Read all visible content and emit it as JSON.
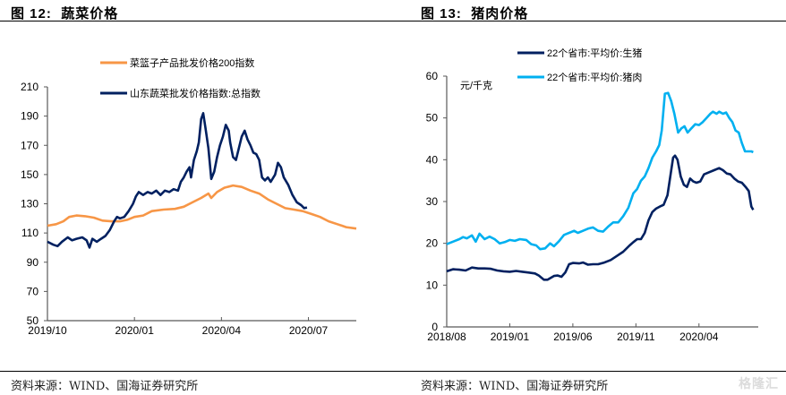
{
  "watermark": "格隆汇",
  "panels": [
    {
      "figure_label": "图 12:",
      "figure_title": "蔬菜价格",
      "source": "资料来源：WIND、国海证券研究所"
    },
    {
      "figure_label": "图 13:",
      "figure_title": "猪肉价格",
      "source": "资料来源：WIND、国海证券研究所"
    }
  ],
  "chart_data": [
    {
      "type": "line",
      "title": "蔬菜价格",
      "xlabel": "",
      "ylabel": "",
      "ylim": [
        50,
        210
      ],
      "yticks": [
        50,
        70,
        90,
        110,
        130,
        150,
        170,
        190,
        210
      ],
      "x_unit": "months since 2019/10",
      "xlim": [
        0,
        10.65
      ],
      "xticks": [
        {
          "label": "2019/10",
          "x": 0
        },
        {
          "label": "2020/01",
          "x": 3
        },
        {
          "label": "2020/04",
          "x": 6
        },
        {
          "label": "2020/07",
          "x": 9
        }
      ],
      "legend_position": "top-center",
      "grid": false,
      "series": [
        {
          "name": "菜篮子产品批发价格200指数",
          "color": "#F79646",
          "points": [
            [
              0,
              115
            ],
            [
              0.3,
              116
            ],
            [
              0.55,
              118
            ],
            [
              0.75,
              121
            ],
            [
              1.0,
              122
            ],
            [
              1.3,
              121.5
            ],
            [
              1.6,
              120.5
            ],
            [
              1.9,
              118.5
            ],
            [
              2.2,
              118
            ],
            [
              2.5,
              118
            ],
            [
              2.75,
              119
            ],
            [
              3.0,
              121
            ],
            [
              3.3,
              122
            ],
            [
              3.6,
              125
            ],
            [
              4.0,
              126
            ],
            [
              4.4,
              126.5
            ],
            [
              4.7,
              128
            ],
            [
              5.0,
              131
            ],
            [
              5.3,
              134
            ],
            [
              5.55,
              137
            ],
            [
              5.65,
              134
            ],
            [
              5.85,
              138
            ],
            [
              6.1,
              141
            ],
            [
              6.4,
              142.5
            ],
            [
              6.7,
              141.5
            ],
            [
              7.0,
              139
            ],
            [
              7.3,
              137
            ],
            [
              7.6,
              133
            ],
            [
              7.9,
              130
            ],
            [
              8.2,
              127
            ],
            [
              8.5,
              126
            ],
            [
              8.8,
              125
            ],
            [
              9.1,
              123
            ],
            [
              9.4,
              121
            ],
            [
              9.7,
              118
            ],
            [
              10.0,
              116
            ],
            [
              10.3,
              114
            ],
            [
              10.65,
              113
            ]
          ]
        },
        {
          "name": "山东蔬菜批发价格指数:总指数",
          "color": "#002060",
          "points": [
            [
              0,
              104
            ],
            [
              0.2,
              102
            ],
            [
              0.35,
              101
            ],
            [
              0.5,
              104
            ],
            [
              0.7,
              107
            ],
            [
              0.85,
              105
            ],
            [
              1.0,
              106
            ],
            [
              1.2,
              107
            ],
            [
              1.35,
              105
            ],
            [
              1.45,
              100
            ],
            [
              1.55,
              106
            ],
            [
              1.7,
              104
            ],
            [
              1.85,
              106
            ],
            [
              2.0,
              108
            ],
            [
              2.15,
              112
            ],
            [
              2.3,
              118
            ],
            [
              2.4,
              121
            ],
            [
              2.5,
              120
            ],
            [
              2.65,
              121
            ],
            [
              2.8,
              125
            ],
            [
              2.95,
              130
            ],
            [
              3.05,
              135
            ],
            [
              3.15,
              138
            ],
            [
              3.3,
              136
            ],
            [
              3.45,
              138
            ],
            [
              3.6,
              137
            ],
            [
              3.75,
              139
            ],
            [
              3.9,
              136
            ],
            [
              4.05,
              139
            ],
            [
              4.2,
              138
            ],
            [
              4.35,
              140
            ],
            [
              4.5,
              139
            ],
            [
              4.6,
              145
            ],
            [
              4.7,
              148
            ],
            [
              4.8,
              152
            ],
            [
              4.9,
              155
            ],
            [
              4.95,
              148
            ],
            [
              5.05,
              160
            ],
            [
              5.15,
              166
            ],
            [
              5.22,
              172
            ],
            [
              5.3,
              188
            ],
            [
              5.37,
              192
            ],
            [
              5.45,
              182
            ],
            [
              5.55,
              168
            ],
            [
              5.65,
              147
            ],
            [
              5.75,
              152
            ],
            [
              5.85,
              162
            ],
            [
              5.95,
              170
            ],
            [
              6.05,
              176
            ],
            [
              6.15,
              184
            ],
            [
              6.25,
              180
            ],
            [
              6.3,
              172
            ],
            [
              6.4,
              162
            ],
            [
              6.5,
              160
            ],
            [
              6.6,
              168
            ],
            [
              6.7,
              176
            ],
            [
              6.8,
              180
            ],
            [
              6.9,
              174
            ],
            [
              7.0,
              170
            ],
            [
              7.1,
              165
            ],
            [
              7.2,
              164
            ],
            [
              7.3,
              160
            ],
            [
              7.4,
              148
            ],
            [
              7.5,
              146
            ],
            [
              7.6,
              148
            ],
            [
              7.7,
              145
            ],
            [
              7.85,
              150
            ],
            [
              7.95,
              158
            ],
            [
              8.05,
              155
            ],
            [
              8.15,
              148
            ],
            [
              8.3,
              143
            ],
            [
              8.45,
              136
            ],
            [
              8.6,
              131
            ],
            [
              8.75,
              129
            ],
            [
              8.85,
              127
            ],
            [
              8.95,
              127.5
            ]
          ]
        }
      ]
    },
    {
      "type": "line",
      "title": "猪肉价格",
      "xlabel": "",
      "ylabel": "元/千克",
      "ylim": [
        0,
        60
      ],
      "yticks": [
        0,
        10,
        20,
        30,
        40,
        50,
        60
      ],
      "x_unit": "months since 2018/08",
      "xlim": [
        0,
        24.7
      ],
      "xticks": [
        {
          "label": "2018/08",
          "x": 0
        },
        {
          "label": "2019/01",
          "x": 5
        },
        {
          "label": "2019/06",
          "x": 10
        },
        {
          "label": "2019/11",
          "x": 15
        },
        {
          "label": "2020/04",
          "x": 20
        }
      ],
      "legend_position": "top-center",
      "grid": false,
      "series": [
        {
          "name": "22个省市:平均价:生猪",
          "color": "#002060",
          "points": [
            [
              0,
              13.3
            ],
            [
              0.5,
              13.8
            ],
            [
              1.0,
              13.7
            ],
            [
              1.5,
              13.5
            ],
            [
              2.0,
              14.2
            ],
            [
              2.5,
              14.0
            ],
            [
              3.0,
              14.0
            ],
            [
              3.5,
              13.9
            ],
            [
              4.0,
              13.5
            ],
            [
              4.5,
              13.3
            ],
            [
              5.0,
              13.2
            ],
            [
              5.5,
              13.4
            ],
            [
              6.0,
              13.2
            ],
            [
              6.5,
              13.0
            ],
            [
              7.0,
              12.8
            ],
            [
              7.3,
              12.3
            ],
            [
              7.7,
              11.3
            ],
            [
              8.0,
              11.3
            ],
            [
              8.5,
              12.2
            ],
            [
              8.8,
              12.3
            ],
            [
              9.1,
              12.0
            ],
            [
              9.4,
              13.0
            ],
            [
              9.7,
              15.0
            ],
            [
              10.0,
              15.3
            ],
            [
              10.5,
              15.2
            ],
            [
              10.8,
              15.4
            ],
            [
              11.2,
              14.9
            ],
            [
              11.6,
              15.0
            ],
            [
              12.0,
              15.0
            ],
            [
              12.5,
              15.4
            ],
            [
              13.0,
              16.0
            ],
            [
              13.5,
              17.0
            ],
            [
              14.0,
              18.0
            ],
            [
              14.5,
              19.5
            ],
            [
              14.8,
              20.3
            ],
            [
              15.1,
              21.0
            ],
            [
              15.4,
              21.0
            ],
            [
              15.7,
              22.5
            ],
            [
              16.0,
              25.5
            ],
            [
              16.3,
              27.5
            ],
            [
              16.6,
              28.3
            ],
            [
              16.9,
              28.8
            ],
            [
              17.2,
              29.2
            ],
            [
              17.5,
              31.5
            ],
            [
              17.75,
              36.5
            ],
            [
              17.95,
              40.5
            ],
            [
              18.1,
              41.0
            ],
            [
              18.3,
              40.0
            ],
            [
              18.55,
              36.0
            ],
            [
              18.8,
              34.0
            ],
            [
              19.05,
              33.5
            ],
            [
              19.3,
              35.5
            ],
            [
              19.55,
              34.8
            ],
            [
              19.8,
              34.5
            ],
            [
              20.1,
              34.8
            ],
            [
              20.4,
              36.5
            ],
            [
              20.8,
              37.0
            ],
            [
              21.2,
              37.5
            ],
            [
              21.6,
              38.0
            ],
            [
              21.9,
              37.5
            ],
            [
              22.2,
              36.7
            ],
            [
              22.5,
              36.5
            ],
            [
              22.8,
              35.5
            ],
            [
              23.1,
              34.8
            ],
            [
              23.4,
              34.5
            ],
            [
              23.7,
              33.5
            ],
            [
              23.95,
              32.5
            ],
            [
              24.15,
              28.8
            ],
            [
              24.3,
              28.0
            ]
          ]
        },
        {
          "name": "22个省市:平均价:猪肉",
          "color": "#00B0F0",
          "points": [
            [
              0,
              19.8
            ],
            [
              0.5,
              20.4
            ],
            [
              1.0,
              21.0
            ],
            [
              1.3,
              21.5
            ],
            [
              1.6,
              21.2
            ],
            [
              2.0,
              21.9
            ],
            [
              2.3,
              20.4
            ],
            [
              2.6,
              22.3
            ],
            [
              3.0,
              21.0
            ],
            [
              3.4,
              21.6
            ],
            [
              3.8,
              21.0
            ],
            [
              4.2,
              20.0
            ],
            [
              4.6,
              20.3
            ],
            [
              5.0,
              20.8
            ],
            [
              5.4,
              20.6
            ],
            [
              5.8,
              21.0
            ],
            [
              6.3,
              20.8
            ],
            [
              6.7,
              19.8
            ],
            [
              7.1,
              19.5
            ],
            [
              7.4,
              18.6
            ],
            [
              7.8,
              18.8
            ],
            [
              8.2,
              20.0
            ],
            [
              8.5,
              19.3
            ],
            [
              8.9,
              20.5
            ],
            [
              9.3,
              22.0
            ],
            [
              9.7,
              22.5
            ],
            [
              10.1,
              23.0
            ],
            [
              10.4,
              22.5
            ],
            [
              10.8,
              23.0
            ],
            [
              11.2,
              23.5
            ],
            [
              11.6,
              23.8
            ],
            [
              12.0,
              23.0
            ],
            [
              12.4,
              22.8
            ],
            [
              12.8,
              24.0
            ],
            [
              13.2,
              25.0
            ],
            [
              13.6,
              25.0
            ],
            [
              14.0,
              26.5
            ],
            [
              14.4,
              28.5
            ],
            [
              14.8,
              32.0
            ],
            [
              15.1,
              33.0
            ],
            [
              15.4,
              35.0
            ],
            [
              15.7,
              36.0
            ],
            [
              16.0,
              38.0
            ],
            [
              16.3,
              40.5
            ],
            [
              16.6,
              42.0
            ],
            [
              16.85,
              43.5
            ],
            [
              17.05,
              47.0
            ],
            [
              17.3,
              55.8
            ],
            [
              17.55,
              56.0
            ],
            [
              17.8,
              54.0
            ],
            [
              18.05,
              51.0
            ],
            [
              18.35,
              46.5
            ],
            [
              18.6,
              47.5
            ],
            [
              18.85,
              48.0
            ],
            [
              19.1,
              46.5
            ],
            [
              19.4,
              47.5
            ],
            [
              19.7,
              48.5
            ],
            [
              20.0,
              48.3
            ],
            [
              20.3,
              49.0
            ],
            [
              20.6,
              50.0
            ],
            [
              20.9,
              51.0
            ],
            [
              21.1,
              51.5
            ],
            [
              21.4,
              51.0
            ],
            [
              21.6,
              51.5
            ],
            [
              21.9,
              51.0
            ],
            [
              22.15,
              51.3
            ],
            [
              22.4,
              50.0
            ],
            [
              22.65,
              49.0
            ],
            [
              22.9,
              47.0
            ],
            [
              23.15,
              46.5
            ],
            [
              23.4,
              44.0
            ],
            [
              23.65,
              42.0
            ],
            [
              23.9,
              42.0
            ],
            [
              24.15,
              42.0
            ],
            [
              24.3,
              41.8
            ]
          ]
        }
      ]
    }
  ]
}
